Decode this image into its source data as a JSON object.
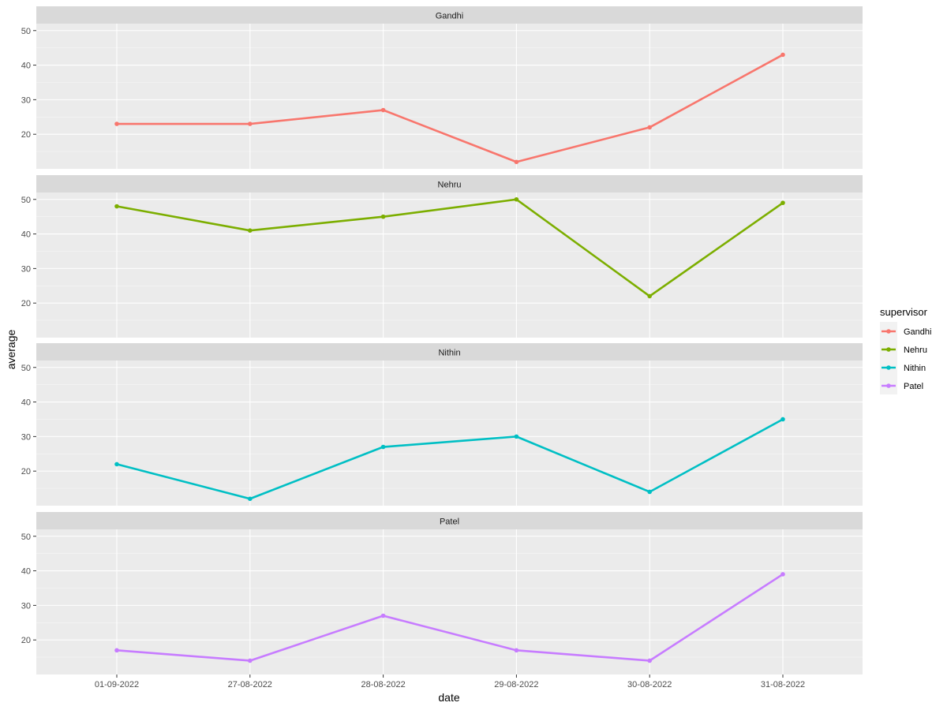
{
  "chart_data": {
    "type": "line",
    "facet_by": "supervisor",
    "x": [
      "01-09-2022",
      "27-08-2022",
      "28-08-2022",
      "29-08-2022",
      "30-08-2022",
      "31-08-2022"
    ],
    "xlabel": "date",
    "ylabel": "average",
    "ylim": [
      10,
      52
    ],
    "yticks": [
      20,
      30,
      40,
      50
    ],
    "grid": true,
    "legend": {
      "title": "supervisor",
      "placement": "right"
    },
    "series": [
      {
        "name": "Gandhi",
        "color": "#F8766D",
        "values": [
          23,
          23,
          27,
          12,
          22,
          43
        ]
      },
      {
        "name": "Nehru",
        "color": "#7CAE00",
        "values": [
          48,
          41,
          45,
          50,
          22,
          49
        ]
      },
      {
        "name": "Nithin",
        "color": "#00BFC4",
        "values": [
          22,
          12,
          27,
          30,
          14,
          35
        ]
      },
      {
        "name": "Patel",
        "color": "#C77CFF",
        "values": [
          17,
          14,
          27,
          17,
          14,
          39
        ]
      }
    ]
  }
}
